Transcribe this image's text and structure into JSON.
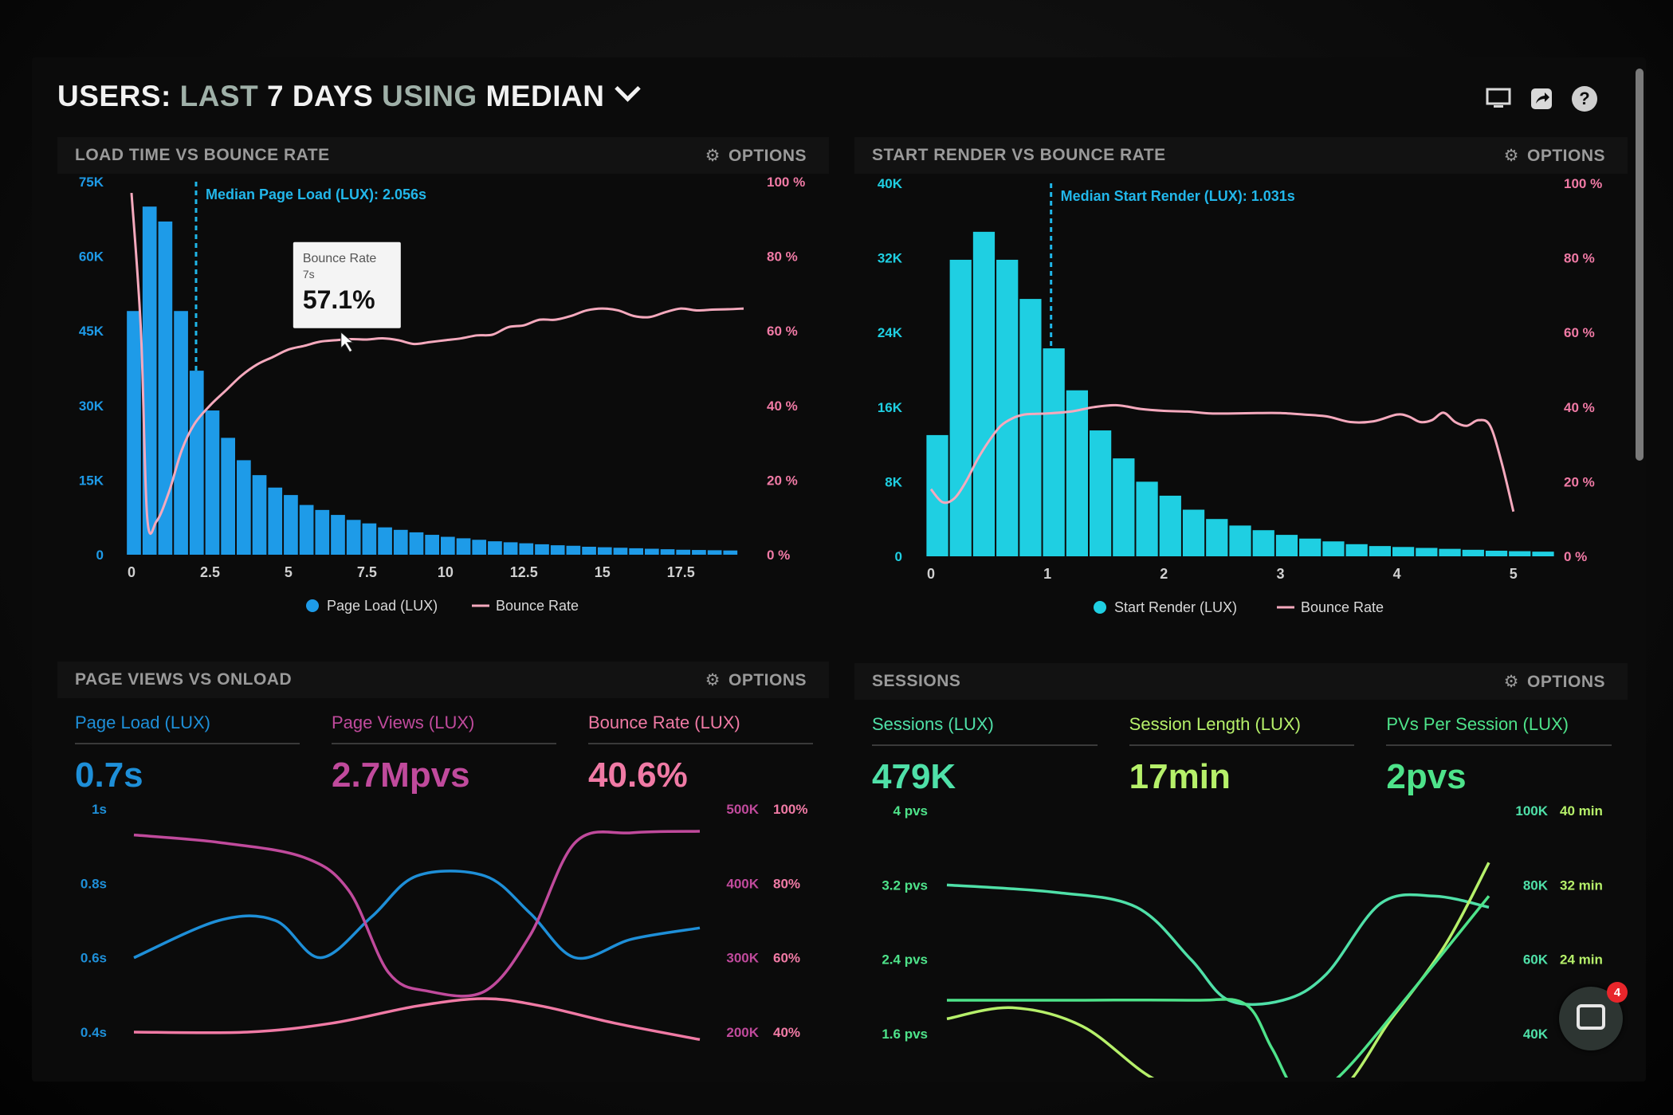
{
  "header": {
    "users_label": "USERS:",
    "range_label": "LAST",
    "days_label": "7 DAYS",
    "using_label": "USING",
    "stat_label": "MEDIAN",
    "icons": [
      "monitor-icon",
      "share-icon",
      "help-icon"
    ]
  },
  "options_label": "OPTIONS",
  "panels": {
    "load": {
      "title": "LOAD TIME VS BOUNCE RATE"
    },
    "render": {
      "title": "START RENDER VS BOUNCE RATE"
    },
    "pageviews": {
      "title": "PAGE VIEWS VS ONLOAD",
      "kpis": [
        {
          "label": "Page Load (LUX)",
          "value": "0.7s",
          "color": "#1e8fd8"
        },
        {
          "label": "Page Views (LUX)",
          "value": "2.7Mpvs",
          "color": "#c04a9c"
        },
        {
          "label": "Bounce Rate (LUX)",
          "value": "40.6%",
          "color": "#f07aa5"
        }
      ]
    },
    "sessions": {
      "title": "SESSIONS",
      "kpis": [
        {
          "label": "Sessions (LUX)",
          "value": "479K",
          "color": "#4fe0a8"
        },
        {
          "label": "Session Length (LUX)",
          "value": "17min",
          "color": "#b6f06a"
        },
        {
          "label": "PVs Per Session (LUX)",
          "value": "2pvs",
          "color": "#4ee38a"
        }
      ]
    }
  },
  "chat": {
    "badge": "4"
  },
  "chart_data": [
    {
      "type": "bar",
      "id": "load",
      "title": "LOAD TIME VS BOUNCE RATE",
      "bar_color": "#1e9be8",
      "line_color": "#f5a9bd",
      "x_ticks": [
        "0",
        "2.5",
        "5",
        "7.5",
        "10",
        "12.5",
        "15",
        "17.5"
      ],
      "x_range": [
        0,
        19.5
      ],
      "y_left_ticks": [
        "0",
        "15K",
        "30K",
        "45K",
        "60K",
        "75K"
      ],
      "y_left_range": [
        0,
        75000
      ],
      "y_right_ticks": [
        "0 %",
        "20 %",
        "40 %",
        "60 %",
        "80 %",
        "100 %"
      ],
      "y_right_range": [
        0,
        100
      ],
      "bin_width": 0.5,
      "values": [
        49000,
        70000,
        67000,
        49000,
        37000,
        29000,
        23500,
        19000,
        16000,
        13500,
        12000,
        10000,
        9000,
        8000,
        7000,
        6300,
        5500,
        5000,
        4500,
        4000,
        3600,
        3300,
        3000,
        2700,
        2500,
        2300,
        2100,
        1900,
        1800,
        1600,
        1500,
        1400,
        1300,
        1200,
        1100,
        1000,
        950,
        900,
        850
      ],
      "line": [
        [
          0,
          97
        ],
        [
          0.3,
          60
        ],
        [
          0.5,
          10
        ],
        [
          0.8,
          9
        ],
        [
          1.2,
          17
        ],
        [
          1.6,
          28
        ],
        [
          2,
          35
        ],
        [
          2.5,
          40
        ],
        [
          3,
          44
        ],
        [
          3.5,
          48
        ],
        [
          4,
          51
        ],
        [
          4.5,
          53
        ],
        [
          5,
          55
        ],
        [
          5.5,
          56
        ],
        [
          6,
          57.1
        ],
        [
          6.5,
          57.5
        ],
        [
          7,
          57.8
        ],
        [
          7.5,
          57.7
        ],
        [
          8,
          58
        ],
        [
          8.5,
          57.5
        ],
        [
          9,
          56.5
        ],
        [
          9.5,
          57
        ],
        [
          10,
          57.5
        ],
        [
          10.5,
          58
        ],
        [
          11,
          58.8
        ],
        [
          11.5,
          59
        ],
        [
          12,
          61
        ],
        [
          12.5,
          61.5
        ],
        [
          13,
          63
        ],
        [
          13.5,
          63
        ],
        [
          14,
          64
        ],
        [
          14.5,
          65.5
        ],
        [
          15,
          66
        ],
        [
          15.5,
          65.5
        ],
        [
          16,
          64
        ],
        [
          16.5,
          63.7
        ],
        [
          17,
          65
        ],
        [
          17.5,
          66
        ],
        [
          18,
          65.5
        ],
        [
          18.5,
          65.7
        ],
        [
          19,
          65.8
        ],
        [
          19.5,
          66
        ]
      ],
      "median_x": 2.056,
      "median_label": "Median Page Load (LUX): 2.056s",
      "tooltip": {
        "title": "Bounce Rate",
        "sub": "7s",
        "value": "57.1%",
        "x": 6.8,
        "y": 57.1
      },
      "legend": [
        "Page Load (LUX)",
        "Bounce Rate"
      ]
    },
    {
      "type": "bar",
      "id": "render",
      "title": "START RENDER VS BOUNCE RATE",
      "bar_color": "#1fcfe2",
      "line_color": "#f5a9bd",
      "x_ticks": [
        "0",
        "1",
        "2",
        "3",
        "4",
        "5"
      ],
      "x_range": [
        0,
        5.2
      ],
      "y_left_ticks": [
        "0",
        "8K",
        "16K",
        "24K",
        "32K",
        "40K"
      ],
      "y_left_range": [
        0,
        40000
      ],
      "y_right_ticks": [
        "0 %",
        "20 %",
        "40 %",
        "60 %",
        "80 %",
        "100 %"
      ],
      "y_right_range": [
        0,
        100
      ],
      "bin_width": 0.2,
      "values": [
        13000,
        31800,
        34800,
        31800,
        27600,
        22300,
        17800,
        13500,
        10500,
        8000,
        6500,
        5000,
        4000,
        3300,
        2800,
        2300,
        1900,
        1600,
        1300,
        1100,
        1000,
        900,
        800,
        700,
        600,
        550,
        500
      ],
      "line": [
        [
          0,
          18
        ],
        [
          0.1,
          14.5
        ],
        [
          0.2,
          15.5
        ],
        [
          0.3,
          20
        ],
        [
          0.4,
          26
        ],
        [
          0.5,
          31
        ],
        [
          0.6,
          35
        ],
        [
          0.7,
          37
        ],
        [
          0.8,
          38
        ],
        [
          0.9,
          38.2
        ],
        [
          1,
          38.3
        ],
        [
          1.2,
          38.8
        ],
        [
          1.4,
          40
        ],
        [
          1.6,
          40.5
        ],
        [
          1.8,
          39.5
        ],
        [
          2,
          39
        ],
        [
          2.2,
          38.8
        ],
        [
          2.4,
          38.3
        ],
        [
          2.6,
          38.3
        ],
        [
          2.8,
          38.4
        ],
        [
          3,
          38.4
        ],
        [
          3.2,
          38
        ],
        [
          3.4,
          37.5
        ],
        [
          3.6,
          36
        ],
        [
          3.8,
          36.2
        ],
        [
          4,
          38
        ],
        [
          4.1,
          37.5
        ],
        [
          4.2,
          36
        ],
        [
          4.3,
          36.5
        ],
        [
          4.4,
          38.5
        ],
        [
          4.5,
          36
        ],
        [
          4.6,
          35
        ],
        [
          4.7,
          36.5
        ],
        [
          4.8,
          35
        ],
        [
          4.9,
          25
        ],
        [
          5,
          12
        ]
      ],
      "median_x": 1.031,
      "median_label": "Median Start Render (LUX): 1.031s",
      "legend": [
        "Start Render (LUX)",
        "Bounce Rate"
      ]
    },
    {
      "type": "line",
      "id": "pageviews",
      "title": "PAGE VIEWS VS ONLOAD",
      "x_range": [
        0,
        1
      ],
      "y_left_ticks": [
        "0.4s",
        "0.6s",
        "0.8s",
        "1s"
      ],
      "y_mid_ticks": [
        "200K",
        "300K",
        "400K",
        "500K"
      ],
      "y_right_ticks": [
        "40%",
        "60%",
        "80%",
        "100%"
      ],
      "y_range": [
        0,
        3
      ],
      "series": [
        {
          "name": "Page Load (LUX)",
          "color": "#1e8fd8",
          "points": [
            [
              0,
              1.0
            ],
            [
              0.15,
              1.5
            ],
            [
              0.25,
              1.5
            ],
            [
              0.33,
              1.0
            ],
            [
              0.42,
              1.55
            ],
            [
              0.5,
              2.1
            ],
            [
              0.62,
              2.1
            ],
            [
              0.7,
              1.6
            ],
            [
              0.78,
              1.0
            ],
            [
              0.88,
              1.25
            ],
            [
              1,
              1.4
            ]
          ]
        },
        {
          "name": "Page Views (LUX)",
          "color": "#c04a9c",
          "points": [
            [
              0,
              2.65
            ],
            [
              0.15,
              2.55
            ],
            [
              0.3,
              2.35
            ],
            [
              0.38,
              1.9
            ],
            [
              0.45,
              0.8
            ],
            [
              0.52,
              0.55
            ],
            [
              0.62,
              0.55
            ],
            [
              0.7,
              1.3
            ],
            [
              0.78,
              2.55
            ],
            [
              0.88,
              2.68
            ],
            [
              1,
              2.7
            ]
          ]
        },
        {
          "name": "Bounce Rate (LUX)",
          "color": "#f07aa5",
          "points": [
            [
              0,
              0
            ],
            [
              0.2,
              0
            ],
            [
              0.35,
              0.12
            ],
            [
              0.5,
              0.35
            ],
            [
              0.62,
              0.45
            ],
            [
              0.72,
              0.35
            ],
            [
              0.85,
              0.12
            ],
            [
              1,
              -0.1
            ]
          ]
        }
      ]
    },
    {
      "type": "line",
      "id": "sessions",
      "title": "SESSIONS",
      "x_range": [
        0,
        1
      ],
      "y_left_ticks": [
        "1.6 pvs",
        "2.4 pvs",
        "3.2 pvs",
        "4 pvs"
      ],
      "y_mid_ticks": [
        "40K",
        "60K",
        "80K",
        "100K"
      ],
      "y_right_ticks": [
        "",
        "24 min",
        "32 min",
        "40 min"
      ],
      "y_range": [
        0,
        3
      ],
      "series": [
        {
          "name": "Sessions (LUX)",
          "color": "#4fe0a8",
          "points": [
            [
              0,
              2.0
            ],
            [
              0.2,
              1.9
            ],
            [
              0.35,
              1.7
            ],
            [
              0.45,
              1.0
            ],
            [
              0.52,
              0.45
            ],
            [
              0.62,
              0.45
            ],
            [
              0.7,
              0.8
            ],
            [
              0.8,
              1.75
            ],
            [
              0.9,
              1.85
            ],
            [
              1,
              1.7
            ]
          ]
        },
        {
          "name": "Session Length (LUX)",
          "color": "#b6f06a",
          "points": [
            [
              0,
              0.2
            ],
            [
              0.12,
              0.35
            ],
            [
              0.25,
              0.1
            ],
            [
              0.38,
              -0.6
            ],
            [
              0.5,
              -0.9
            ],
            [
              0.7,
              -0.9
            ],
            [
              0.82,
              0.2
            ],
            [
              0.92,
              1.2
            ],
            [
              1,
              2.3
            ]
          ]
        },
        {
          "name": "PVs Per Session (LUX)",
          "color": "#4ee38a",
          "points": [
            [
              0,
              0.45
            ],
            [
              0.2,
              0.45
            ],
            [
              0.45,
              0.45
            ],
            [
              0.55,
              0.4
            ],
            [
              0.6,
              -0.2
            ],
            [
              0.65,
              -0.8
            ],
            [
              0.72,
              -0.6
            ],
            [
              0.85,
              0.5
            ],
            [
              1,
              1.85
            ]
          ]
        }
      ]
    }
  ]
}
